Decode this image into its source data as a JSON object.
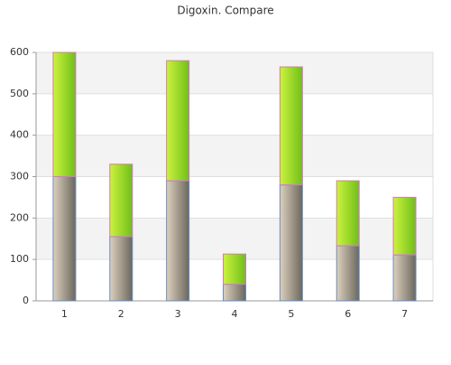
{
  "chart_data": {
    "type": "stacked-bar",
    "title": "Digoxin. Compare",
    "categories": [
      "1",
      "2",
      "3",
      "4",
      "5",
      "6",
      "7"
    ],
    "series": [
      {
        "color": [
          "#ddd0bd",
          "#6b675d"
        ],
        "stroke": "#6a8cc0",
        "values": [
          300,
          155,
          290,
          40,
          280,
          133,
          111
        ]
      },
      {
        "color": [
          "#cdf23f",
          "#6fbf18"
        ],
        "stroke": "#d07ac0",
        "values": [
          300,
          175,
          290,
          73,
          285,
          157,
          139
        ]
      }
    ],
    "ylim": [
      0,
      600
    ],
    "yticks": [
      0,
      100,
      200,
      300,
      400,
      500,
      600
    ],
    "grid": true
  }
}
